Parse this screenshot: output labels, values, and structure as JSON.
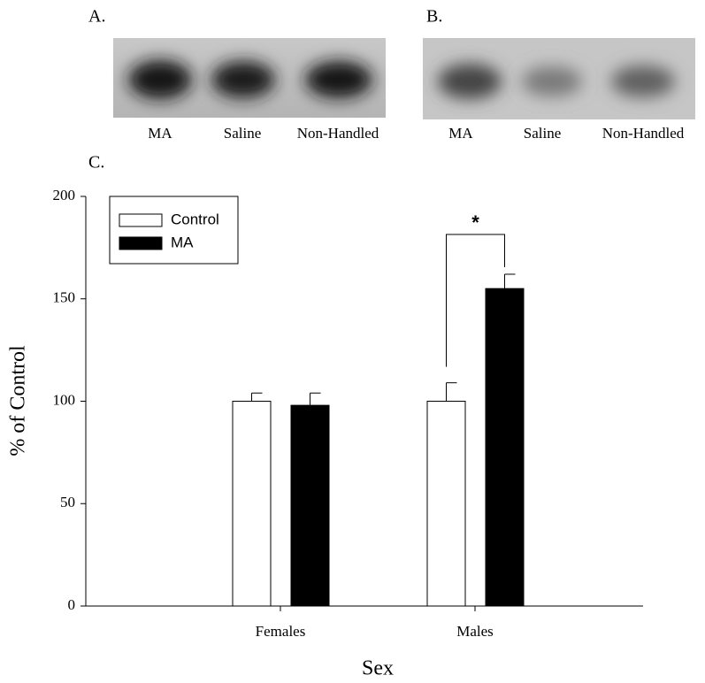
{
  "panels": [
    {
      "label": "A.",
      "lanes": [
        "MA",
        "Saline",
        "Non-Handled"
      ]
    },
    {
      "label": "B.",
      "lanes": [
        "MA",
        "Saline",
        "Non-Handled"
      ]
    }
  ],
  "chart_data": {
    "type": "bar",
    "panel_label": "C.",
    "x_label": "Sex",
    "y_label": "% of Control",
    "categories": [
      "Females",
      "Males"
    ],
    "series": [
      {
        "name": "Control",
        "color": "#ffffff",
        "values": [
          100,
          100
        ],
        "errors": [
          4,
          9
        ]
      },
      {
        "name": "MA",
        "color": "#000000",
        "values": [
          98,
          155
        ],
        "errors": [
          6,
          7
        ]
      }
    ],
    "ylim": [
      0,
      200
    ],
    "yticks": [
      0,
      50,
      100,
      150,
      200
    ],
    "legend": "upper left",
    "annotation": "*"
  }
}
